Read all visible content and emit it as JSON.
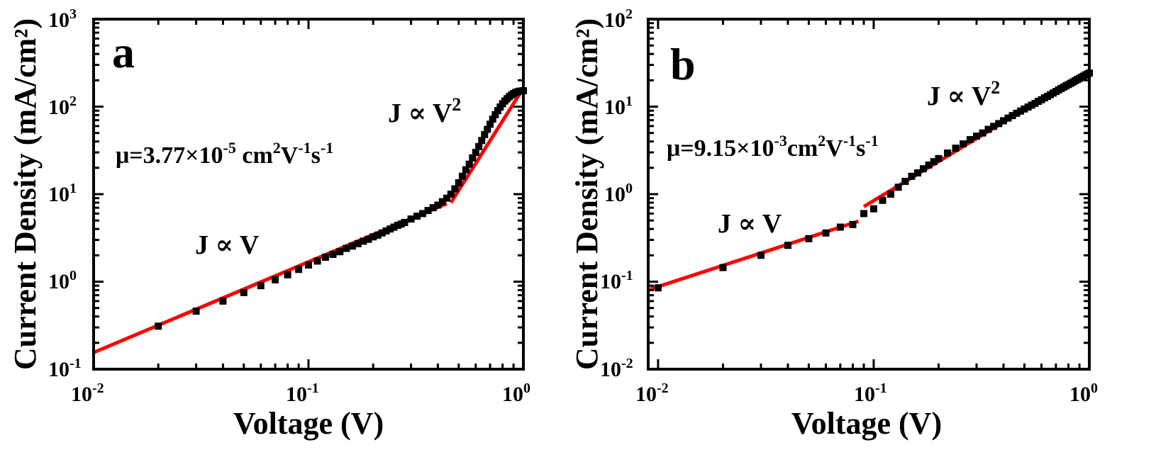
{
  "chart_data": [
    {
      "panel_label": "a",
      "type": "scatter",
      "xlabel": "Voltage (V)",
      "ylabel": "Current Density (mA/cm²)",
      "xscale": "log",
      "yscale": "log",
      "xlim": [
        0.01,
        1.0
      ],
      "ylim": [
        0.1,
        1000
      ],
      "x_ticks": [
        {
          "base": "10",
          "exp": "-2"
        },
        {
          "base": "10",
          "exp": "-1"
        },
        {
          "base": "10",
          "exp": "0"
        }
      ],
      "y_ticks": [
        {
          "base": "10",
          "exp": "-1"
        },
        {
          "base": "10",
          "exp": "0"
        },
        {
          "base": "10",
          "exp": "1"
        },
        {
          "base": "10",
          "exp": "2"
        },
        {
          "base": "10",
          "exp": "3"
        }
      ],
      "mobility": {
        "prefix": "μ=3.77×10",
        "exp": "-5",
        "unit": " cm",
        "unit_exp": "2",
        "v": "V",
        "v_exp": "-1",
        "s": "s",
        "s_exp": "-1"
      },
      "annotations": [
        {
          "text": "J ∝ V",
          "exp": ""
        },
        {
          "text": "J ∝ V",
          "exp": "2"
        }
      ],
      "series": [
        {
          "marker": "square",
          "color": "#000000",
          "x": [
            0.02,
            0.03,
            0.04,
            0.05,
            0.06,
            0.07,
            0.08,
            0.09,
            0.1,
            0.11,
            0.12,
            0.13,
            0.14,
            0.15,
            0.16,
            0.17,
            0.18,
            0.19,
            0.2,
            0.21,
            0.22,
            0.23,
            0.24,
            0.25,
            0.26,
            0.27,
            0.28,
            0.3,
            0.32,
            0.34,
            0.36,
            0.38,
            0.4,
            0.42,
            0.44,
            0.46,
            0.48,
            0.5,
            0.52,
            0.54,
            0.56,
            0.58,
            0.6,
            0.62,
            0.64,
            0.66,
            0.68,
            0.7,
            0.72,
            0.74,
            0.76,
            0.78,
            0.8,
            0.82,
            0.84,
            0.86,
            0.88,
            0.9,
            0.92,
            0.94,
            0.96,
            0.98,
            1.0
          ],
          "y": [
            0.31,
            0.46,
            0.6,
            0.75,
            0.9,
            1.05,
            1.2,
            1.38,
            1.55,
            1.72,
            1.9,
            2.05,
            2.2,
            2.4,
            2.55,
            2.72,
            2.9,
            3.05,
            3.25,
            3.4,
            3.6,
            3.8,
            4.0,
            4.2,
            4.4,
            4.55,
            4.75,
            5.2,
            5.6,
            6.0,
            6.5,
            7.0,
            7.5,
            8.2,
            9.0,
            10.0,
            11.5,
            13.5,
            16.0,
            19.0,
            22.0,
            26.0,
            30.0,
            35.0,
            41.0,
            48.0,
            55.0,
            63.0,
            72.0,
            81.0,
            90.0,
            99.0,
            108.0,
            116.0,
            123.0,
            130.0,
            136.0,
            141.0,
            145.0,
            148.0,
            150.0,
            151.0,
            152.0
          ]
        },
        {
          "role": "fit",
          "color": "#ff0000",
          "segments": [
            {
              "x": [
                0.01,
                0.44
              ],
              "y": [
                0.155,
                7.8
              ]
            },
            {
              "x": [
                0.46,
                0.97
              ],
              "y": [
                8.0,
                145.0
              ]
            }
          ]
        }
      ]
    },
    {
      "panel_label": "b",
      "type": "scatter",
      "xlabel": "Voltage (V)",
      "ylabel": "Current Density (mA/cm²)",
      "xscale": "log",
      "yscale": "log",
      "xlim": [
        0.009,
        1.0
      ],
      "ylim": [
        0.01,
        100
      ],
      "x_ticks": [
        {
          "base": "10",
          "exp": "-2"
        },
        {
          "base": "10",
          "exp": "-1"
        },
        {
          "base": "10",
          "exp": "0"
        }
      ],
      "y_ticks": [
        {
          "base": "10",
          "exp": "-2"
        },
        {
          "base": "10",
          "exp": "-1"
        },
        {
          "base": "10",
          "exp": "0"
        },
        {
          "base": "10",
          "exp": "1"
        },
        {
          "base": "10",
          "exp": "2"
        }
      ],
      "mobility": {
        "prefix": "μ=9.15×10",
        "exp": "-3",
        "unit": "cm",
        "unit_exp": "2",
        "v": "V",
        "v_exp": "-1",
        "s": "s",
        "s_exp": "-1"
      },
      "annotations": [
        {
          "text": "J ∝ V",
          "exp": ""
        },
        {
          "text": "J ∝ V",
          "exp": "2"
        }
      ],
      "series": [
        {
          "marker": "square",
          "color": "#000000",
          "x": [
            0.01,
            0.02,
            0.03,
            0.04,
            0.05,
            0.06,
            0.07,
            0.08,
            0.09,
            0.1,
            0.11,
            0.12,
            0.13,
            0.14,
            0.15,
            0.16,
            0.17,
            0.18,
            0.19,
            0.2,
            0.22,
            0.24,
            0.26,
            0.28,
            0.3,
            0.32,
            0.34,
            0.36,
            0.38,
            0.4,
            0.42,
            0.44,
            0.46,
            0.48,
            0.5,
            0.52,
            0.54,
            0.56,
            0.58,
            0.6,
            0.62,
            0.64,
            0.66,
            0.68,
            0.7,
            0.72,
            0.74,
            0.76,
            0.78,
            0.8,
            0.82,
            0.84,
            0.86,
            0.88,
            0.9,
            0.92,
            0.94,
            0.96,
            0.98,
            1.0
          ],
          "y": [
            0.085,
            0.145,
            0.2,
            0.26,
            0.31,
            0.36,
            0.42,
            0.45,
            0.6,
            0.68,
            0.85,
            1.0,
            1.2,
            1.4,
            1.6,
            1.75,
            1.95,
            2.15,
            2.35,
            2.55,
            2.95,
            3.35,
            3.75,
            4.2,
            4.6,
            5.0,
            5.5,
            5.95,
            6.4,
            6.9,
            7.4,
            7.9,
            8.4,
            8.9,
            9.4,
            9.9,
            10.4,
            10.9,
            11.5,
            12.0,
            12.6,
            13.1,
            13.7,
            14.3,
            14.9,
            15.5,
            16.1,
            16.7,
            17.3,
            17.9,
            18.5,
            19.1,
            19.8,
            20.4,
            21.0,
            21.7,
            22.3,
            23.0,
            23.6,
            24.2
          ]
        },
        {
          "role": "fit",
          "color": "#ff0000",
          "segments": [
            {
              "x": [
                0.0092,
                0.085
              ],
              "y": [
                0.082,
                0.49
              ]
            },
            {
              "x": [
                0.09,
                1.0
              ],
              "y": [
                0.72,
                26.0
              ]
            }
          ]
        }
      ]
    }
  ]
}
